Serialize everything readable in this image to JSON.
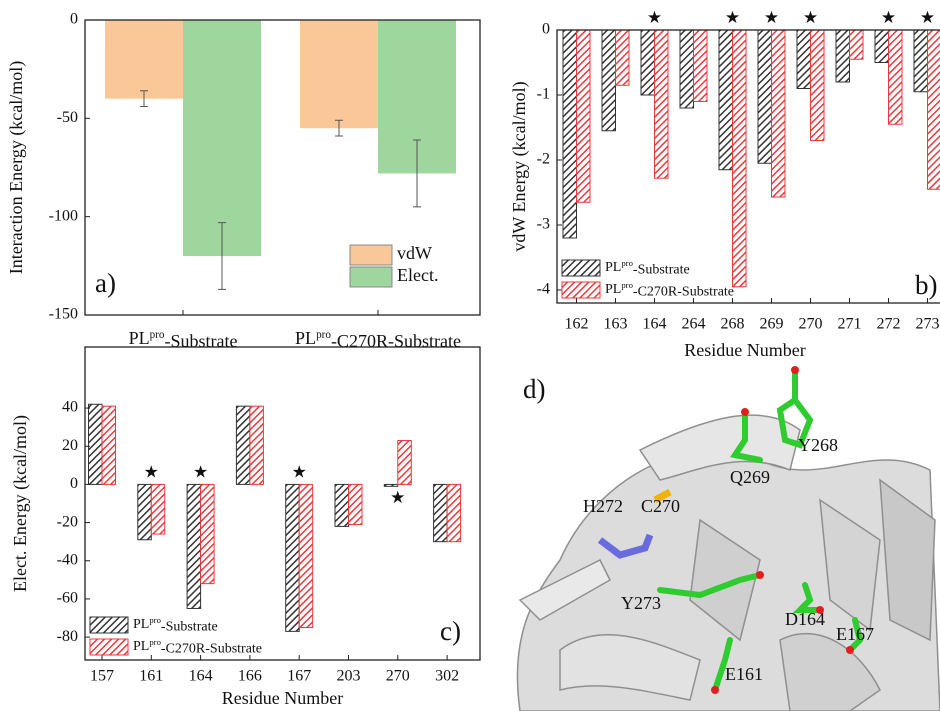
{
  "chart_data": [
    {
      "type": "bar",
      "panel_label": "a)",
      "ylabel": "Interaction Energy (kcal/mol)",
      "categories": [
        "PLpro-Substrate",
        "PLpro-C270R-Substrate"
      ],
      "series": [
        {
          "name": "vdW",
          "color": "#fac898",
          "values": [
            -40,
            -55
          ],
          "errors": [
            4,
            4
          ]
        },
        {
          "name": "Elect.",
          "color": "#9ed69e",
          "values": [
            -120,
            -78
          ],
          "errors": [
            17,
            17
          ]
        }
      ],
      "ylim": [
        -150,
        0
      ],
      "yticks": [
        -150,
        -100,
        -50,
        0
      ],
      "legend": "lower right",
      "hatch": false
    },
    {
      "type": "bar",
      "panel_label": "b)",
      "xlabel": "Residue Number",
      "ylabel": "vdW Energy (kcal/mol)",
      "categories": [
        "162",
        "163",
        "164",
        "264",
        "268",
        "269",
        "270",
        "271",
        "272",
        "273"
      ],
      "series": [
        {
          "name": "PLpro-Substrate",
          "color": "#333333",
          "values": [
            -3.2,
            -1.55,
            -1.0,
            -1.2,
            -2.15,
            -2.05,
            -0.9,
            -0.8,
            -0.5,
            -0.95
          ]
        },
        {
          "name": "PLpro-C270R-Substrate",
          "color": "#e8393f",
          "values": [
            -2.65,
            -0.85,
            -2.28,
            -1.1,
            -3.95,
            -2.57,
            -1.7,
            -0.45,
            -1.45,
            -2.45
          ]
        }
      ],
      "ylim": [
        -4.2,
        0
      ],
      "yticks": [
        -4,
        -3,
        -2,
        -1,
        0
      ],
      "legend": "lower left",
      "hatch": true,
      "marker": "★",
      "starred": [
        false,
        false,
        true,
        false,
        true,
        true,
        true,
        false,
        true,
        true
      ]
    },
    {
      "type": "bar",
      "panel_label": "c)",
      "xlabel": "Residue Number",
      "ylabel": "Elect. Energy (kcal/mol)",
      "categories": [
        "157",
        "161",
        "164",
        "166",
        "167",
        "203",
        "270",
        "302"
      ],
      "series": [
        {
          "name": "PLpro-Substrate",
          "color": "#333333",
          "values": [
            42,
            -29,
            -65,
            41,
            -77,
            -22,
            -1,
            -30
          ]
        },
        {
          "name": "PLpro-C270R-Substrate",
          "color": "#e8393f",
          "values": [
            41,
            -26,
            -52,
            41,
            -75,
            -21,
            23,
            -30
          ]
        }
      ],
      "ylim": [
        -92,
        72
      ],
      "yticks": [
        -80,
        -60,
        -40,
        -20,
        0,
        20,
        40
      ],
      "legend": "lower left",
      "hatch": true,
      "marker": "★",
      "starred": [
        false,
        true,
        true,
        false,
        true,
        false,
        true,
        false
      ]
    }
  ],
  "image": {
    "label": "d)",
    "residues": [
      "Y268",
      "Q269",
      "H272",
      "C270",
      "Y273",
      "D164",
      "E167",
      "E161"
    ]
  }
}
